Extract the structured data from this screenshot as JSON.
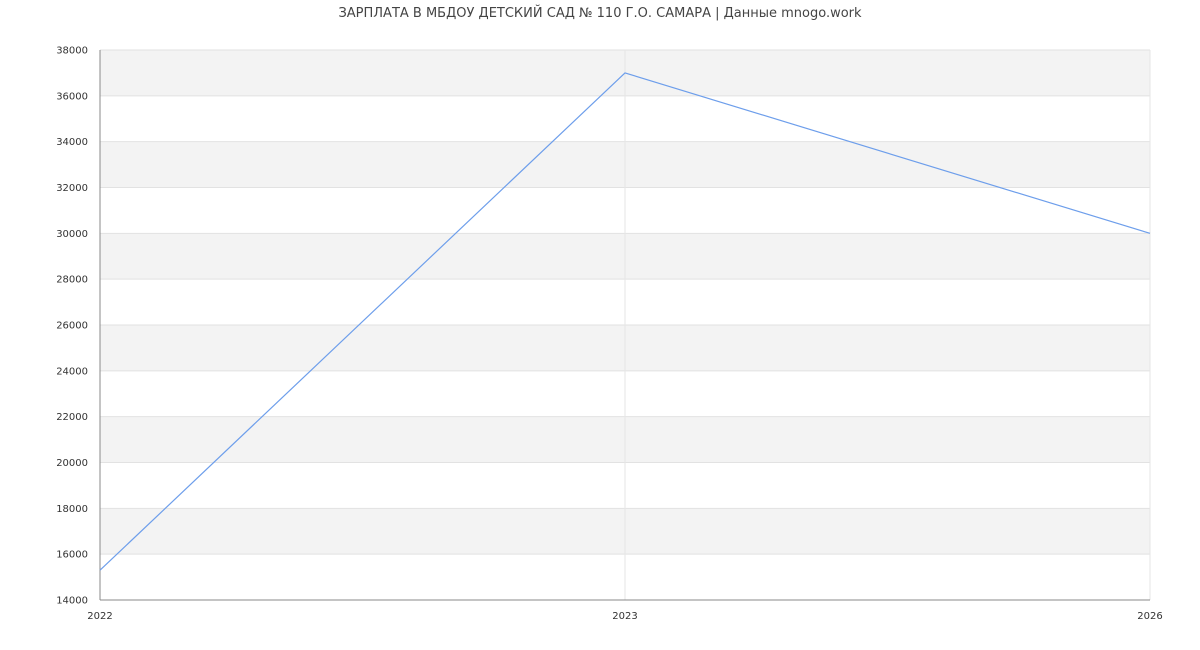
{
  "chart_data": {
    "type": "line",
    "title": "ЗАРПЛАТА В МБДОУ ДЕТСКИЙ САД № 110 Г.О. САМАРА | Данные mnogo.work",
    "categories": [
      "2022",
      "2023",
      "2026"
    ],
    "series": [
      {
        "values": [
          15300,
          37000,
          30000
        ]
      }
    ],
    "ylim": [
      14000,
      38000
    ],
    "yticks": [
      "14000",
      "16000",
      "18000",
      "20000",
      "22000",
      "24000",
      "26000",
      "28000",
      "30000",
      "32000",
      "34000",
      "36000",
      "38000"
    ],
    "grid": true,
    "line_color": "#6d9eeb",
    "band_color": "#f3f3f3"
  }
}
